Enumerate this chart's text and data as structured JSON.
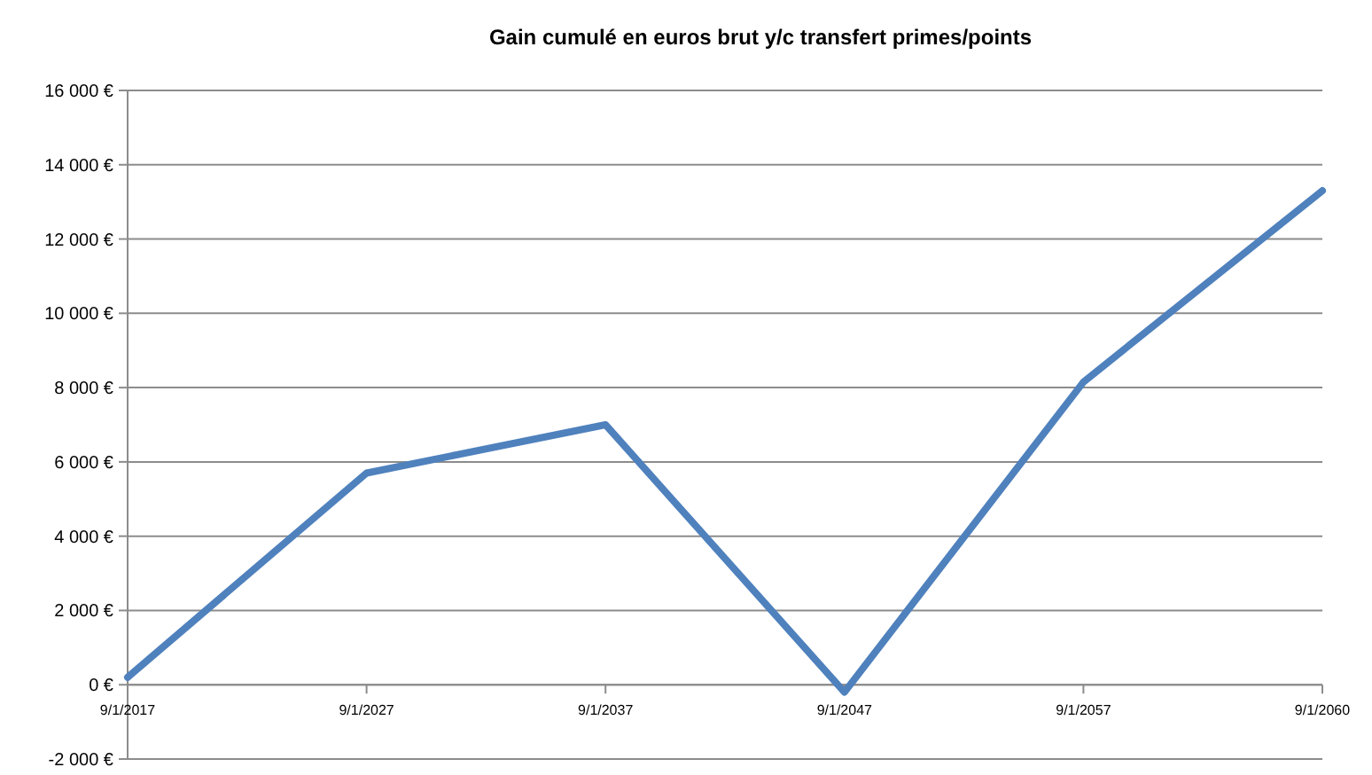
{
  "chart_data": {
    "type": "line",
    "title": "Gain cumulé en euros brut y/c transfert primes/points",
    "categories": [
      "9/1/2017",
      "9/1/2027",
      "9/1/2037",
      "9/1/2047",
      "9/1/2057",
      "9/1/2060"
    ],
    "series": [
      {
        "color": "#4f81bd",
        "values": [
          200,
          5700,
          7000,
          -200,
          8150,
          13300
        ]
      }
    ],
    "ylim": [
      -2000,
      16000
    ],
    "yticks": [
      {
        "value": -2000,
        "label": "-2 000 €"
      },
      {
        "value": 0,
        "label": "0 €"
      },
      {
        "value": 2000,
        "label": "2 000 €"
      },
      {
        "value": 4000,
        "label": "4 000 €"
      },
      {
        "value": 6000,
        "label": "6 000 €"
      },
      {
        "value": 8000,
        "label": "8 000 €"
      },
      {
        "value": 10000,
        "label": "10 000 €"
      },
      {
        "value": 12000,
        "label": "12 000 €"
      },
      {
        "value": 14000,
        "label": "14 000 €"
      },
      {
        "value": 16000,
        "label": "16 000 €"
      }
    ],
    "grid": "y",
    "marker": "none",
    "line_style": "solid"
  }
}
